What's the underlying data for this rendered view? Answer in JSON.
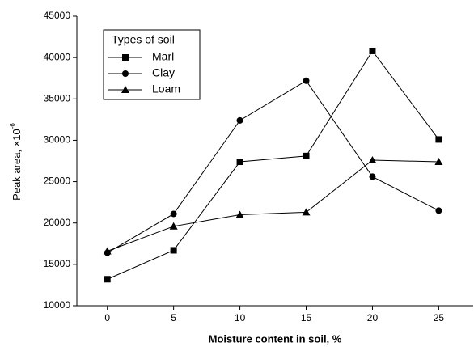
{
  "chart_data": {
    "type": "line",
    "x_label": "Moisture content in soil, %",
    "y_label": "Peak area, ×10",
    "y_label_superscript": "-6",
    "legend_title": "Types of soil",
    "legend_position": "upper left",
    "x": [
      0,
      5,
      10,
      15,
      20,
      25
    ],
    "xlim": [
      -2.3,
      27.6
    ],
    "xticks": [
      0,
      5,
      10,
      15,
      20,
      25
    ],
    "ylim": [
      10000,
      45000
    ],
    "yticks": [
      10000,
      15000,
      20000,
      25000,
      30000,
      35000,
      40000,
      45000
    ],
    "series": [
      {
        "name": "Marl",
        "color": "#000000",
        "marker": "square",
        "values": [
          13200,
          16700,
          27400,
          28100,
          40800,
          30100
        ]
      },
      {
        "name": "Clay",
        "color": "#000000",
        "marker": "circle",
        "values": [
          16400,
          21100,
          32400,
          37200,
          25600,
          21500
        ]
      },
      {
        "name": "Loam",
        "color": "#000000",
        "marker": "triangle",
        "values": [
          16600,
          19600,
          21000,
          21300,
          27600,
          27400
        ]
      }
    ]
  }
}
